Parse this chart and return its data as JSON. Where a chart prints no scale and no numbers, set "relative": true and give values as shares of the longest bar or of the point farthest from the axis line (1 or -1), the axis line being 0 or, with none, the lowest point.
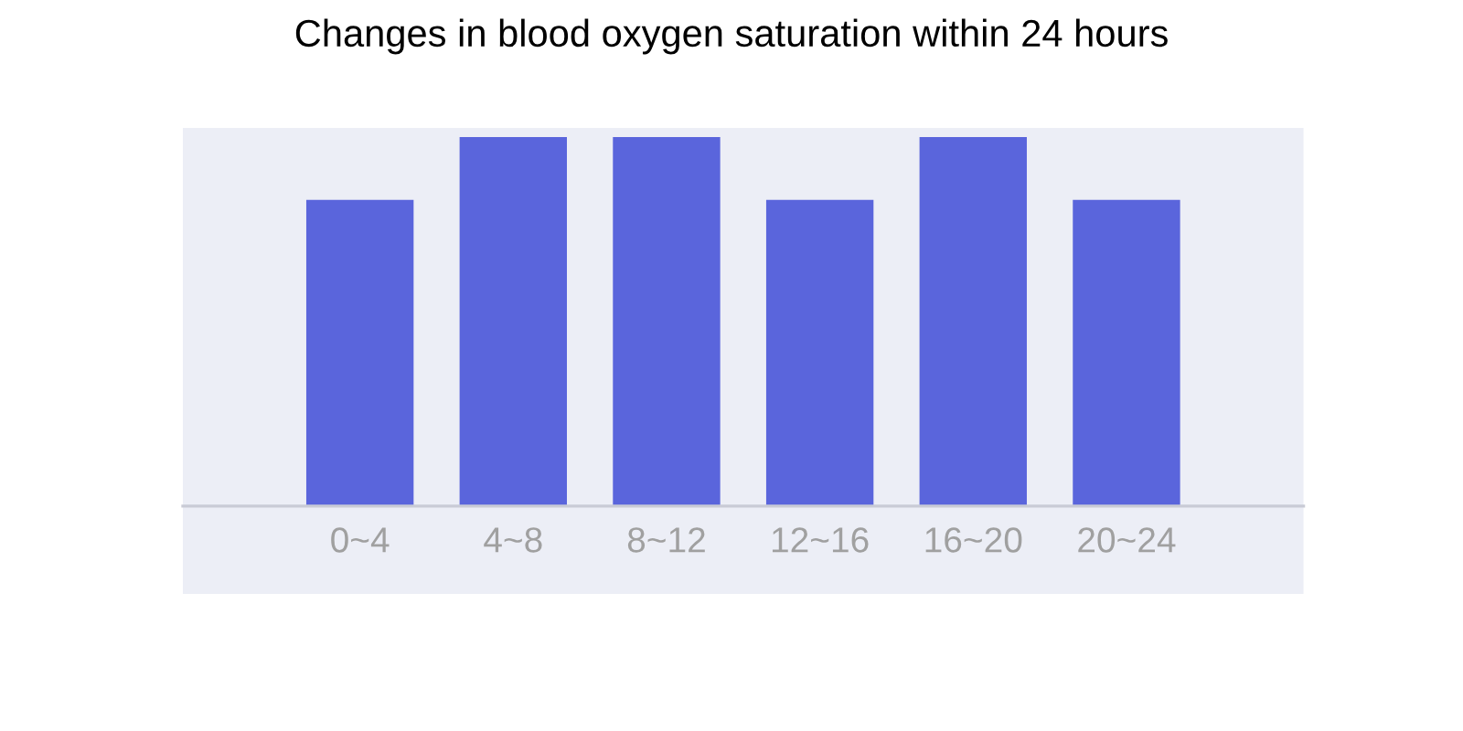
{
  "chart_data": {
    "type": "bar",
    "title": "Changes in blood oxygen saturation within 24 hours",
    "categories": [
      "0~4",
      "4~8",
      "8~12",
      "12~16",
      "16~20",
      "20~24"
    ],
    "values": [
      0.83,
      1,
      1,
      0.83,
      1,
      0.83
    ],
    "color": "#5a65dc",
    "relative": true
  }
}
